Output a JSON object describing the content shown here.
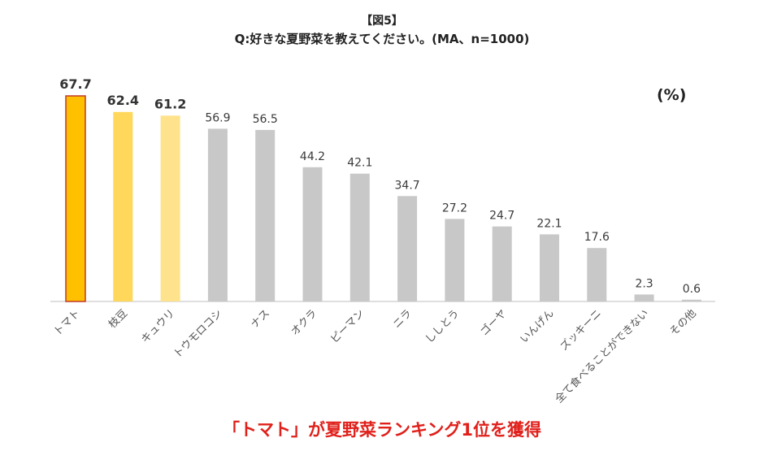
{
  "chart_data": {
    "type": "bar",
    "figure_label": "【図5】",
    "title": "Q:好きな夏野菜を教えてください。(MA、n=1000)",
    "unit": "(%)",
    "headline": "「トマト」が夏野菜ランキング1位を獲得",
    "categories": [
      "トマト",
      "枝豆",
      "キュウリ",
      "トウモロコシ",
      "ナス",
      "オクラ",
      "ピーマン",
      "ニラ",
      "ししとう",
      "ゴーヤ",
      "いんげん",
      "ズッキーニ",
      "全て食べることができない",
      "その他"
    ],
    "values": [
      67.7,
      62.4,
      61.2,
      56.9,
      56.5,
      44.2,
      42.1,
      34.7,
      27.2,
      24.7,
      22.1,
      17.6,
      2.3,
      0.6
    ],
    "value_labels": [
      "67.7",
      "62.4",
      "61.2",
      "56.9",
      "56.5",
      "44.2",
      "42.1",
      "34.7",
      "27.2",
      "24.7",
      "22.1",
      "17.6",
      "2.3",
      "0.6"
    ],
    "colors": [
      "#FFC000",
      "#FFD75A",
      "#FFE28C",
      "#C8C8C8",
      "#C8C8C8",
      "#C8C8C8",
      "#C8C8C8",
      "#C8C8C8",
      "#C8C8C8",
      "#C8C8C8",
      "#C8C8C8",
      "#C8C8C8",
      "#C8C8C8",
      "#C8C8C8"
    ],
    "highlight_border": "#C0392B",
    "highlight_count": 3,
    "ylim": [
      0,
      100
    ],
    "xlabel": "",
    "ylabel": ""
  }
}
